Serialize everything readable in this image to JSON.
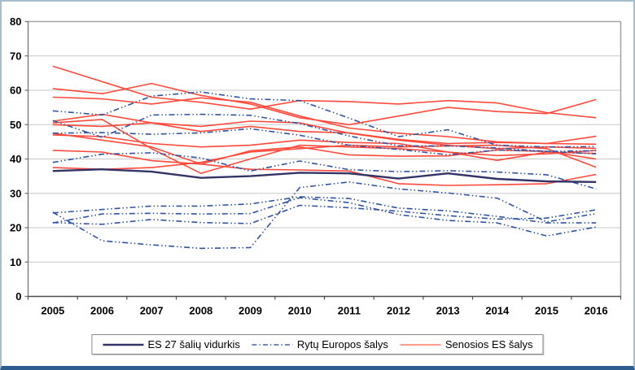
{
  "chart_data": {
    "type": "line",
    "categories": [
      "2005",
      "2006",
      "2007",
      "2008",
      "2009",
      "2010",
      "2011",
      "2012",
      "2013",
      "2014",
      "2015",
      "2016"
    ],
    "ylim": [
      0,
      80
    ],
    "yticks": [
      0,
      10,
      20,
      30,
      40,
      50,
      60,
      70,
      80
    ],
    "grid": true,
    "legend_position": "bottom",
    "styles": {
      "es27": {
        "color": "#333366",
        "width": 2.4,
        "dash": ""
      },
      "rytu": {
        "color": "#3054a5",
        "width": 1.6,
        "dash": "7 3 1.5 3 1.5 3"
      },
      "senosios": {
        "color": "#ff4a3b",
        "width": 1.6,
        "dash": ""
      }
    },
    "legend": [
      {
        "label": "ES 27 šalių vidurkis",
        "group": "es27",
        "sample_color": "#333366",
        "sample_dash": ""
      },
      {
        "label": "Rytų Europos šalys",
        "group": "rytu",
        "sample_color": "#3b62b5",
        "sample_dash": "6 3 1.5 3"
      },
      {
        "label": "Senosios ES šalys",
        "group": "senosios",
        "sample_color": "#ff8b7b",
        "sample_dash": ""
      }
    ],
    "series": [
      {
        "group": "senosios",
        "values": [
          67,
          62.5,
          58,
          56.5,
          54.5,
          57,
          56.7,
          56,
          57,
          56.3,
          53.5,
          52
        ]
      },
      {
        "group": "senosios",
        "values": [
          60.5,
          59,
          62,
          58.5,
          56,
          52,
          50,
          52.5,
          55,
          53.8,
          53.2,
          57.3
        ]
      },
      {
        "group": "senosios",
        "values": [
          58,
          57.5,
          56,
          57.8,
          56.5,
          52.5,
          49,
          47.5,
          46.5,
          45,
          44.5,
          46.6
        ]
      },
      {
        "group": "senosios",
        "values": [
          51,
          53,
          50.5,
          49.5,
          51,
          50.5,
          47.5,
          45.5,
          44,
          43,
          43.5,
          43.1
        ]
      },
      {
        "group": "senosios",
        "values": [
          50.5,
          51.5,
          43,
          35.8,
          40,
          44,
          43.5,
          43,
          42,
          41,
          41.5,
          42.5
        ]
      },
      {
        "group": "senosios",
        "values": [
          47.5,
          45.5,
          43.5,
          38.5,
          37,
          36.8,
          36.5,
          32.8,
          32.3,
          32.5,
          32.8,
          35.5
        ]
      },
      {
        "group": "senosios",
        "values": [
          50,
          49.5,
          50.5,
          48,
          49.5,
          48,
          47.6,
          45.7,
          44.5,
          44.8,
          44.5,
          44.3
        ]
      },
      {
        "group": "senosios",
        "values": [
          47,
          46.5,
          44.5,
          43.5,
          44,
          45.5,
          44.8,
          44.5,
          42,
          39.6,
          42,
          41.6
        ]
      },
      {
        "group": "senosios",
        "values": [
          42.5,
          42,
          39.5,
          38.5,
          42.4,
          43.5,
          41.2,
          40.8,
          40.9,
          42.6,
          42.2,
          40
        ]
      },
      {
        "group": "senosios",
        "values": [
          37.5,
          37,
          37.5,
          39,
          42,
          43,
          44,
          43.5,
          43.8,
          44,
          43,
          37.6
        ]
      },
      {
        "group": "rytu",
        "values": [
          54,
          52.8,
          58.3,
          59.5,
          57.5,
          57,
          51.9,
          46.5,
          48.5,
          44,
          43.5,
          43.6
        ]
      },
      {
        "group": "rytu",
        "values": [
          51.2,
          46.3,
          52.8,
          53,
          52.7,
          50.3,
          46.7,
          43.8,
          43.8,
          43.2,
          42.2,
          42.4
        ]
      },
      {
        "group": "rytu",
        "values": [
          47.5,
          47.7,
          47.2,
          47.6,
          48.8,
          46.9,
          44,
          42.8,
          41.2,
          42.6,
          42.2,
          41.5
        ]
      },
      {
        "group": "rytu",
        "values": [
          39,
          41.4,
          41.8,
          40.3,
          36.5,
          39.4,
          36.9,
          36.3,
          36.6,
          36.2,
          35.4,
          31.3
        ]
      },
      {
        "group": "rytu",
        "values": [
          24.5,
          16.2,
          15,
          14,
          14.2,
          31.7,
          33.3,
          31.3,
          30.1,
          28.6,
          21.7,
          24.1
        ]
      },
      {
        "group": "rytu",
        "values": [
          24.3,
          25.3,
          26.3,
          26.3,
          26.9,
          29,
          28.5,
          25.7,
          24.9,
          23.3,
          21.4,
          21.4
        ]
      },
      {
        "group": "rytu",
        "values": [
          21.4,
          24,
          24.2,
          24,
          24.1,
          28.7,
          27.3,
          23.8,
          22.1,
          21.4,
          17.6,
          20.2
        ]
      },
      {
        "group": "rytu",
        "values": [
          21.5,
          21,
          22.4,
          21.5,
          21.2,
          26.5,
          25.8,
          24.8,
          23.5,
          22.5,
          22.8,
          25.2
        ]
      },
      {
        "group": "es27",
        "values": [
          36.5,
          37,
          36.3,
          34.5,
          35,
          36,
          35.8,
          34.3,
          35.8,
          34.2,
          33.5,
          33.3
        ]
      }
    ],
    "colors": {
      "grid": "#c8c8c8",
      "frame": "#a6a6a6",
      "axis": "#6e6e6e",
      "axis_bottom": "#4d4d4d",
      "plot_bg": "#ffffff"
    }
  }
}
